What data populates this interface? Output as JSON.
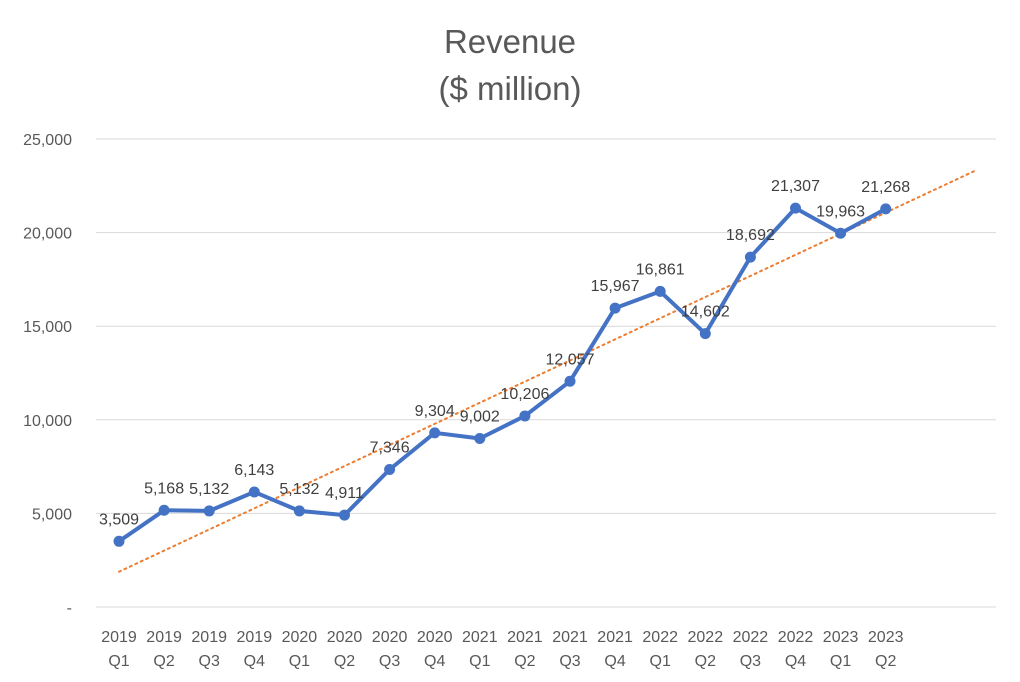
{
  "chart_data": {
    "type": "line",
    "title": "Revenue",
    "subtitle": "($ million)",
    "xlabel": "",
    "ylabel": "",
    "categories": [
      [
        "2019",
        "Q1"
      ],
      [
        "2019",
        "Q2"
      ],
      [
        "2019",
        "Q3"
      ],
      [
        "2019",
        "Q4"
      ],
      [
        "2020",
        "Q1"
      ],
      [
        "2020",
        "Q2"
      ],
      [
        "2020",
        "Q3"
      ],
      [
        "2020",
        "Q4"
      ],
      [
        "2021",
        "Q1"
      ],
      [
        "2021",
        "Q2"
      ],
      [
        "2021",
        "Q3"
      ],
      [
        "2021",
        "Q4"
      ],
      [
        "2022",
        "Q1"
      ],
      [
        "2022",
        "Q2"
      ],
      [
        "2022",
        "Q3"
      ],
      [
        "2022",
        "Q4"
      ],
      [
        "2023",
        "Q1"
      ],
      [
        "2023",
        "Q2"
      ]
    ],
    "series": [
      {
        "values": [
          3509,
          5168,
          5132,
          6143,
          5132,
          4911,
          7346,
          9304,
          9002,
          10206,
          12057,
          15967,
          16861,
          14602,
          18692,
          21307,
          19963,
          21268
        ],
        "data_labels": [
          "3,509",
          "5,168",
          "5,132",
          "6,143",
          "5,132",
          "4,911",
          "7,346",
          "9,304",
          "9,002",
          "10,206",
          "12,057",
          "15,967",
          "16,861",
          "14,602",
          "18,692",
          "21,307",
          "19,963",
          "21,268"
        ],
        "color": "#4472C4"
      }
    ],
    "trendline": {
      "type": "linear",
      "color": "#ED7D31",
      "style": "dotted"
    },
    "ylim": [
      0,
      25000
    ],
    "yticks": [
      0,
      5000,
      10000,
      15000,
      20000,
      25000
    ],
    "ytick_labels": [
      "-",
      "5,000",
      "10,000",
      "15,000",
      "20,000",
      "25,000"
    ],
    "grid": true,
    "legend": "none"
  }
}
